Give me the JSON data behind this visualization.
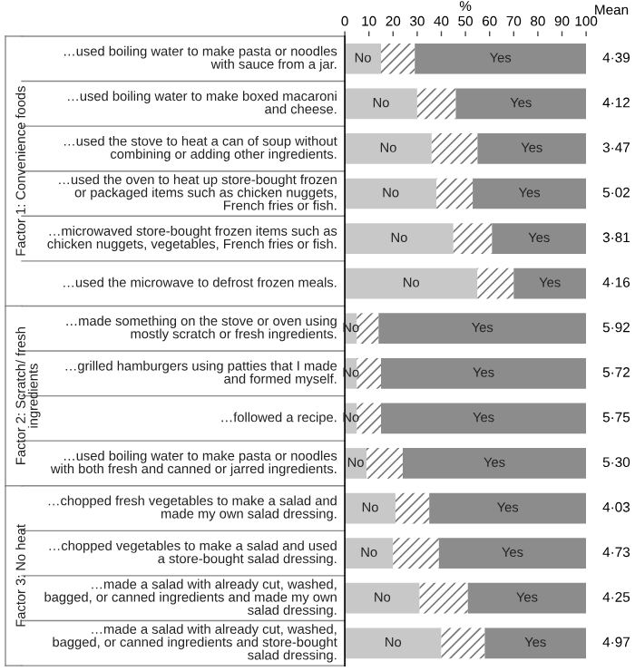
{
  "chart_data": {
    "type": "bar",
    "orientation": "horizontal",
    "stacked": true,
    "xlabel": "%",
    "categories": [
      "…used boiling water to make pasta or noodles with sauce from a jar.",
      "…used boiling water to make boxed macaroni and cheese.",
      "…used the stove to heat a can of soup without combining or adding other ingredients.",
      "…used the oven to heat up store-bought frozen or packaged items such as chicken nuggets, French fries or fish.",
      "…microwaved store-bought frozen items such as chicken nuggets, vegetables, French fries or fish.",
      "…used the microwave to defrost frozen meals.",
      "…made something on the stove or oven using mostly scratch or fresh ingredients.",
      "…grilled hamburgers using patties that I made and formed myself.",
      "…followed a recipe.",
      "…used boiling water to make pasta or noodles with both fresh and canned or jarred ingredients.",
      "…chopped fresh vegetables to make a salad and made my own salad dressing.",
      "…chopped vegetables to make a salad and used a store-bought salad dressing.",
      "…made a salad with already cut, washed, bagged, or canned ingredients and made my own salad dressing.",
      "…made a salad with already cut, washed, bagged, or canned ingredients and store-bought salad dressing."
    ],
    "series": [
      {
        "name": "No",
        "color": "#c8c8c8",
        "values": [
          15,
          30,
          36,
          38,
          45,
          55,
          5,
          5,
          5,
          9,
          21,
          20,
          31,
          40
        ]
      },
      {
        "color": "#ffffff",
        "values": [
          14,
          16,
          19,
          15,
          16,
          15,
          9,
          10,
          10,
          15,
          14,
          19,
          20,
          18
        ]
      },
      {
        "name": "Yes",
        "color": "#8c8c8c",
        "values": [
          71,
          54,
          45,
          47,
          39,
          30,
          86,
          85,
          85,
          76,
          65,
          61,
          49,
          42
        ]
      }
    ],
    "xlim": [
      0,
      100
    ],
    "xticks": [
      0,
      10,
      20,
      30,
      40,
      50,
      60,
      70,
      80,
      90,
      100
    ],
    "grid": false,
    "legend": false,
    "annotations": [
      "Mean",
      "4·39",
      "4·12",
      "3·47",
      "5·02",
      "3·81",
      "4·16",
      "5·92",
      "5·72",
      "5·75",
      "5·30",
      "4·03",
      "4·73",
      "4·25",
      "4·97",
      "Factor 1: Convenience foods",
      "Factor 2: Scratch/ fresh ingredients",
      "Factor 3: No heat"
    ]
  }
}
